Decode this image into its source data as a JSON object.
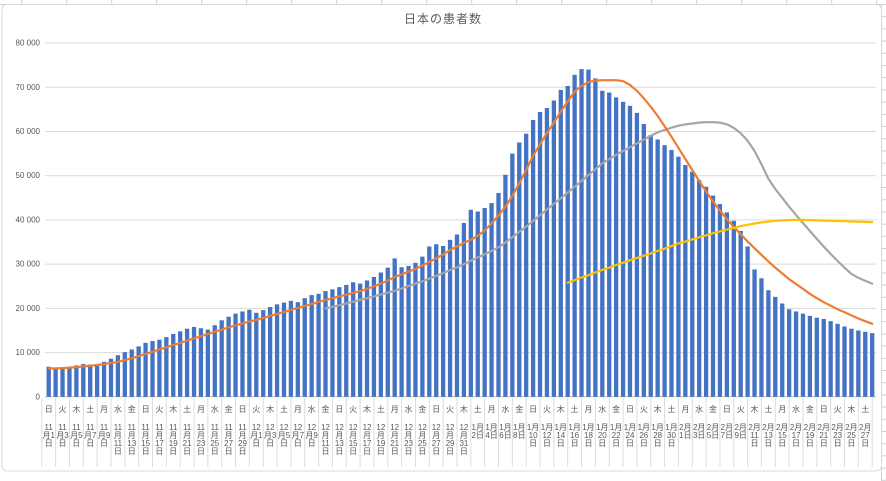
{
  "chart_data": {
    "type": "combo",
    "title": "日本の患者数",
    "legend": "none",
    "grid": true,
    "start_weekday_index": 0,
    "weekdays": [
      "日",
      "月",
      "火",
      "水",
      "木",
      "金",
      "土"
    ],
    "month_days": [
      [
        "11月",
        30
      ],
      [
        "12月",
        31
      ],
      [
        "1月",
        31
      ],
      [
        "2月",
        28
      ]
    ],
    "date_suffix": "日",
    "x_axis": {
      "label_every": 2
    },
    "y_axis": {
      "min": 0,
      "max": 80000,
      "step": 10000,
      "labels": [
        "0",
        "10 000",
        "20 000",
        "30 000",
        "40 000",
        "50 000",
        "60 000",
        "70 000",
        "80 000"
      ]
    },
    "series": {
      "bars": {
        "type": "bar",
        "color": "#4472C4",
        "offset": 0,
        "values": [
          6800,
          6500,
          6400,
          6700,
          7100,
          7400,
          7300,
          7400,
          7900,
          8600,
          9400,
          10100,
          10700,
          11400,
          12200,
          12600,
          12900,
          13500,
          14200,
          14800,
          15400,
          15800,
          15500,
          15200,
          16200,
          17300,
          18100,
          18800,
          19300,
          19700,
          19000,
          19600,
          20300,
          20900,
          21300,
          21700,
          21400,
          22300,
          23000,
          23300,
          23900,
          24300,
          24800,
          25300,
          25900,
          25600,
          26300,
          27100,
          28100,
          29200,
          31300,
          29300,
          29600,
          30300,
          31700,
          34000,
          34500,
          34100,
          35500,
          36700,
          39300,
          42300,
          41900,
          42700,
          43800,
          46100,
          50200,
          55000,
          57500,
          59500,
          62600,
          64400,
          65300,
          67000,
          69400,
          70300,
          72800,
          74100,
          74000,
          72000,
          69200,
          68800,
          67700,
          66700,
          65800,
          64200,
          61700,
          59200,
          58200,
          56900,
          55800,
          54300,
          52400,
          50900,
          49000,
          47500,
          45500,
          43600,
          41700,
          39800,
          37500,
          34000,
          28800,
          26800,
          24100,
          22600,
          21100,
          19800,
          19300,
          18800,
          18300,
          17900,
          17600,
          17100,
          16500,
          15900,
          15400,
          15000,
          14700,
          14400
        ]
      },
      "line_orange": {
        "type": "line",
        "color": "#ED7D31",
        "offset": 0,
        "values": [
          6400,
          6450,
          6500,
          6600,
          6700,
          6850,
          7000,
          7200,
          7400,
          7650,
          7900,
          8300,
          8700,
          9200,
          9700,
          10200,
          10700,
          11200,
          11700,
          12200,
          12700,
          13200,
          13700,
          14200,
          14700,
          15200,
          15700,
          16150,
          16600,
          17000,
          17400,
          17850,
          18300,
          18750,
          19200,
          19650,
          20100,
          20550,
          21000,
          21450,
          21900,
          22300,
          22700,
          23100,
          23500,
          23900,
          24400,
          25000,
          25600,
          26300,
          27100,
          27700,
          28300,
          28900,
          29700,
          30500,
          31300,
          32200,
          33200,
          34000,
          34800,
          35500,
          36400,
          37600,
          39200,
          41000,
          43000,
          45400,
          48300,
          51300,
          54500,
          57100,
          59600,
          62000,
          64500,
          66800,
          69000,
          70300,
          71200,
          71500,
          71600,
          71600,
          71600,
          71400,
          70500,
          69200,
          67500,
          65600,
          63500,
          61200,
          58800,
          56300,
          53800,
          51300,
          48800,
          46400,
          44200,
          42100,
          40200,
          38400,
          36800,
          35100,
          33600,
          32100,
          30600,
          29200,
          27900,
          26600,
          25500,
          24400,
          23300,
          22300,
          21400,
          20600,
          19800,
          19100,
          18400,
          17700,
          17100,
          16500
        ]
      },
      "line_gray": {
        "type": "line",
        "color": "#A5A5A5",
        "offset": 40,
        "values": [
          20000,
          20350,
          20700,
          21100,
          21500,
          21900,
          22300,
          22700,
          23150,
          23550,
          24000,
          24500,
          25050,
          25600,
          26150,
          26700,
          27350,
          28000,
          28650,
          29300,
          30000,
          30750,
          31500,
          32250,
          33000,
          33800,
          34900,
          36100,
          37300,
          38500,
          39800,
          41050,
          42350,
          43650,
          44900,
          46200,
          47500,
          48800,
          50150,
          51450,
          52800,
          53750,
          54700,
          55600,
          56450,
          57300,
          58150,
          59000,
          59800,
          60350,
          60850,
          61300,
          61600,
          61800,
          62000,
          62100,
          62100,
          62000,
          61600,
          60800,
          59600,
          57900,
          55600,
          52600,
          49300,
          47000,
          45000,
          43000,
          41100,
          39300,
          37500,
          35700,
          34000,
          32300,
          30700,
          29200,
          27800,
          26900,
          26200,
          25600
        ]
      },
      "line_yellow": {
        "type": "line",
        "color": "#FFC000",
        "offset": 75,
        "values": [
          25800,
          26400,
          27000,
          27500,
          28100,
          28700,
          29200,
          29800,
          30300,
          30900,
          31400,
          31900,
          32400,
          33000,
          33500,
          34100,
          34700,
          35100,
          35600,
          36100,
          36500,
          37000,
          37400,
          37800,
          38200,
          38600,
          38900,
          39200,
          39450,
          39650,
          39800,
          39900,
          39950,
          40000,
          40000,
          39950,
          39900,
          39850,
          39800,
          39750,
          39700,
          39650,
          39600,
          39550,
          39500
        ]
      }
    },
    "colors": {
      "grid": "#D9D9D9",
      "axis_line": "#BFBFBF",
      "text": "#595959",
      "chart_border": "#D9D9D9",
      "sheet_line": "#D0D0D0",
      "label_separator": "#DCDCDC"
    }
  }
}
